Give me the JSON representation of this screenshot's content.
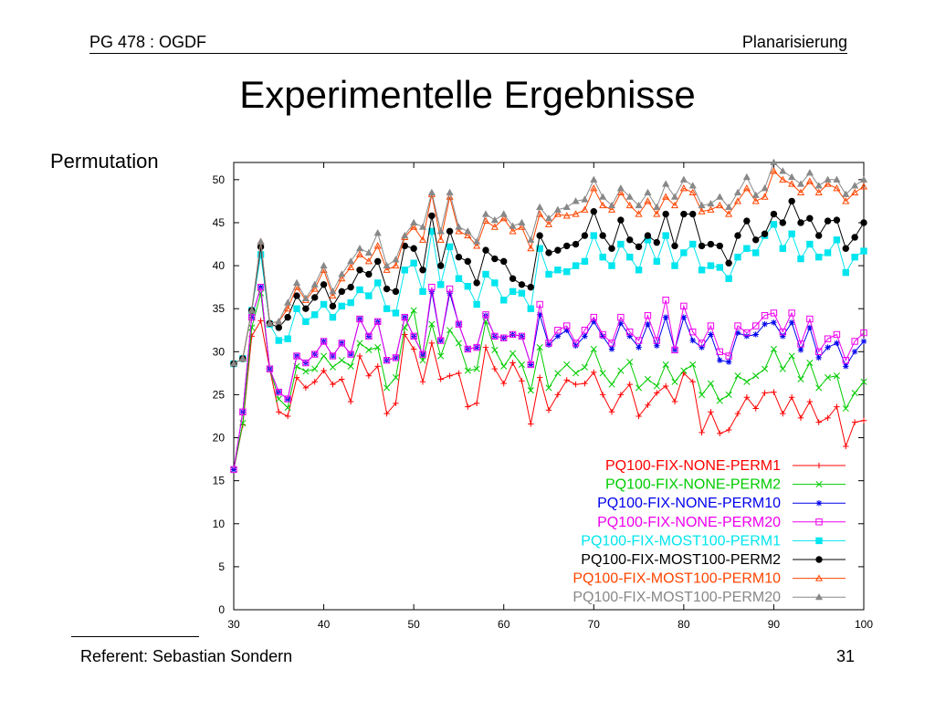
{
  "header": {
    "left": "PG  478 : OGDF",
    "right": "Planarisierung"
  },
  "slide": {
    "title": "Experimentelle Ergebnisse",
    "subtitle": "Permutation"
  },
  "footer": {
    "left": "Referent: Sebastian Sondern",
    "page": "31"
  },
  "chart_data": {
    "type": "line",
    "title": "",
    "xlabel": "",
    "ylabel": "",
    "xlim": [
      30,
      100
    ],
    "ylim": [
      0,
      52
    ],
    "xticks": [
      30,
      40,
      50,
      60,
      70,
      80,
      90,
      100
    ],
    "yticks": [
      0,
      5,
      10,
      15,
      20,
      25,
      30,
      35,
      40,
      45,
      50
    ],
    "legend_position": "bottom-right",
    "grid": false,
    "x": [
      30,
      31,
      32,
      33,
      34,
      35,
      36,
      37,
      38,
      39,
      40,
      41,
      42,
      43,
      44,
      45,
      46,
      47,
      48,
      49,
      50,
      51,
      52,
      53,
      54,
      55,
      56,
      57,
      58,
      59,
      60,
      61,
      62,
      63,
      64,
      65,
      66,
      67,
      68,
      69,
      70,
      71,
      72,
      73,
      74,
      75,
      76,
      77,
      78,
      79,
      80,
      81,
      82,
      83,
      84,
      85,
      86,
      87,
      88,
      89,
      90,
      91,
      92,
      93,
      94,
      95,
      96,
      97,
      98,
      99,
      100
    ],
    "series": [
      {
        "name": "PQ100-FIX-NONE-PERM1",
        "color": "#ff0000",
        "marker": "plus",
        "values": [
          16.3,
          21.5,
          31.8,
          33.6,
          28.0,
          23.0,
          22.5,
          27.0,
          25.8,
          26.5,
          27.8,
          26.2,
          26.8,
          24.2,
          29.5,
          27.2,
          28.3,
          22.8,
          24.0,
          32.0,
          30.3,
          26.5,
          31.0,
          26.8,
          27.2,
          27.5,
          23.6,
          24.0,
          30.5,
          28.0,
          26.3,
          28.7,
          26.6,
          21.6,
          27.0,
          23.2,
          25.0,
          26.7,
          26.2,
          26.3,
          27.6,
          25.0,
          23.0,
          25.0,
          26.2,
          22.5,
          23.8,
          25.2,
          26.0,
          24.2,
          27.5,
          26.5,
          20.6,
          23.0,
          20.5,
          20.9,
          22.8,
          24.7,
          23.4,
          25.2,
          25.3,
          22.8,
          24.7,
          22.3,
          24.2,
          21.8,
          22.3,
          23.6,
          19.0,
          21.8,
          22.0
        ]
      },
      {
        "name": "PQ100-FIX-NONE-PERM2",
        "color": "#00cc00",
        "marker": "x",
        "values": [
          16.3,
          21.7,
          32.8,
          36.8,
          28.0,
          24.5,
          23.5,
          28.3,
          27.7,
          28.0,
          29.5,
          28.2,
          29.0,
          28.3,
          31.0,
          30.2,
          30.5,
          25.8,
          27.0,
          32.8,
          34.8,
          29.0,
          33.2,
          29.5,
          32.5,
          31.0,
          27.8,
          28.0,
          33.5,
          30.2,
          28.3,
          29.8,
          28.5,
          25.5,
          30.5,
          25.8,
          27.5,
          28.5,
          27.5,
          28.2,
          30.3,
          27.5,
          26.2,
          27.8,
          28.8,
          25.8,
          26.8,
          26.0,
          28.5,
          26.5,
          27.8,
          28.5,
          25.0,
          26.3,
          24.3,
          25.0,
          27.2,
          26.5,
          27.2,
          28.0,
          30.3,
          28.0,
          29.5,
          26.8,
          28.7,
          25.8,
          27.0,
          27.2,
          23.4,
          25.2,
          26.5
        ]
      },
      {
        "name": "PQ100-FIX-NONE-PERM10",
        "color": "#0000ee",
        "marker": "star",
        "values": [
          16.3,
          23.0,
          34.0,
          37.5,
          28.0,
          25.3,
          24.5,
          29.5,
          28.7,
          29.7,
          31.2,
          29.5,
          31.0,
          29.7,
          33.8,
          31.8,
          33.5,
          29.0,
          29.3,
          34.0,
          31.8,
          29.7,
          37.0,
          31.3,
          36.8,
          33.2,
          30.3,
          30.5,
          34.2,
          31.8,
          31.6,
          32.0,
          31.8,
          28.5,
          34.3,
          30.8,
          31.8,
          32.5,
          30.7,
          31.8,
          33.5,
          31.8,
          30.3,
          33.3,
          31.8,
          30.5,
          33.2,
          30.7,
          34.0,
          30.2,
          34.0,
          31.3,
          30.5,
          32.0,
          29.0,
          28.8,
          32.2,
          31.8,
          32.0,
          33.2,
          33.4,
          31.8,
          33.4,
          30.2,
          32.8,
          29.3,
          30.5,
          31.0,
          28.3,
          30.0,
          31.2
        ]
      },
      {
        "name": "PQ100-FIX-NONE-PERM20",
        "color": "#ee00ee",
        "marker": "square",
        "values": [
          16.3,
          23.0,
          34.0,
          37.5,
          28.0,
          25.3,
          24.5,
          29.5,
          28.7,
          29.7,
          31.2,
          29.5,
          31.0,
          29.7,
          33.8,
          31.8,
          33.5,
          29.0,
          29.3,
          34.0,
          31.8,
          29.7,
          37.5,
          31.3,
          37.3,
          33.2,
          30.3,
          30.5,
          34.3,
          31.8,
          31.6,
          32.0,
          31.8,
          28.5,
          35.5,
          31.0,
          32.5,
          33.0,
          31.0,
          32.5,
          34.0,
          32.0,
          31.0,
          34.0,
          32.3,
          31.3,
          34.2,
          31.3,
          36.0,
          30.2,
          35.3,
          32.3,
          31.0,
          33.0,
          30.0,
          29.5,
          33.0,
          32.2,
          33.0,
          34.2,
          34.5,
          32.3,
          34.5,
          30.9,
          33.8,
          30.0,
          31.5,
          32.0,
          29.0,
          31.2,
          32.2
        ]
      },
      {
        "name": "PQ100-FIX-MOST100-PERM1",
        "color": "#00e5ee",
        "marker": "filled-square",
        "values": [
          28.6,
          29.2,
          34.8,
          41.3,
          33.2,
          31.3,
          31.5,
          35.0,
          33.5,
          34.3,
          35.5,
          34.0,
          35.3,
          35.7,
          37.2,
          36.5,
          38.0,
          35.0,
          34.5,
          39.5,
          40.3,
          37.0,
          44.0,
          37.8,
          42.2,
          38.5,
          37.6,
          35.5,
          39.0,
          38.0,
          36.0,
          37.0,
          36.8,
          35.0,
          42.0,
          39.0,
          39.5,
          39.3,
          40.0,
          40.5,
          43.5,
          41.0,
          40.0,
          42.5,
          41.0,
          39.5,
          43.0,
          40.5,
          43.5,
          40.0,
          41.5,
          42.5,
          39.5,
          40.0,
          39.8,
          38.5,
          41.0,
          42.0,
          41.5,
          43.5,
          44.8,
          42.0,
          43.7,
          40.8,
          42.5,
          41.0,
          41.5,
          43.0,
          39.2,
          41.0,
          41.7
        ]
      },
      {
        "name": "PQ100-FIX-MOST100-PERM2",
        "color": "#000000",
        "marker": "filled-circle",
        "values": [
          28.6,
          29.2,
          34.8,
          42.2,
          33.3,
          32.8,
          34.0,
          36.5,
          35.0,
          36.3,
          37.8,
          35.3,
          37.0,
          37.5,
          39.5,
          39.0,
          40.5,
          37.3,
          37.0,
          42.3,
          42.0,
          39.5,
          45.8,
          40.0,
          44.0,
          41.0,
          40.5,
          38.0,
          41.8,
          40.8,
          40.5,
          38.5,
          37.8,
          37.5,
          43.5,
          41.5,
          41.8,
          42.3,
          42.5,
          43.5,
          46.3,
          43.5,
          42.0,
          45.3,
          43.0,
          42.2,
          43.5,
          42.7,
          46.0,
          42.3,
          46.0,
          46.0,
          42.3,
          42.5,
          42.3,
          40.3,
          43.5,
          45.2,
          43.0,
          43.7,
          46.0,
          45.0,
          47.5,
          45.0,
          45.5,
          43.5,
          45.2,
          45.3,
          42.0,
          43.3,
          45.0
        ]
      },
      {
        "name": "PQ100-FIX-MOST100-PERM10",
        "color": "#ff4500",
        "marker": "triangle",
        "values": [
          28.6,
          29.2,
          34.8,
          42.8,
          33.3,
          33.5,
          35.0,
          37.5,
          36.0,
          37.3,
          39.5,
          36.5,
          38.5,
          39.8,
          41.3,
          40.5,
          42.3,
          39.5,
          40.0,
          43.3,
          44.5,
          43.0,
          48.3,
          43.0,
          48.0,
          44.0,
          43.5,
          42.3,
          45.2,
          44.5,
          45.5,
          44.0,
          44.5,
          42.0,
          46.0,
          44.8,
          46.0,
          45.8,
          46.0,
          46.5,
          49.0,
          47.0,
          46.5,
          48.5,
          47.0,
          46.0,
          47.5,
          46.0,
          48.0,
          47.0,
          49.0,
          48.5,
          46.3,
          46.5,
          47.0,
          46.0,
          47.5,
          49.0,
          47.5,
          48.0,
          51.0,
          50.0,
          49.5,
          48.5,
          49.8,
          48.5,
          49.5,
          49.0,
          47.5,
          48.5,
          49.2
        ]
      },
      {
        "name": "PQ100-FIX-MOST100-PERM20",
        "color": "#888888",
        "marker": "filled-triangle",
        "values": [
          28.6,
          29.2,
          34.8,
          42.8,
          33.3,
          33.5,
          35.7,
          38.0,
          36.2,
          37.8,
          40.0,
          37.0,
          39.0,
          40.5,
          42.0,
          41.5,
          43.8,
          40.0,
          40.7,
          43.5,
          45.0,
          44.5,
          48.5,
          44.0,
          48.5,
          44.5,
          44.0,
          42.8,
          46.0,
          45.3,
          46.0,
          44.6,
          45.0,
          43.0,
          46.8,
          45.5,
          46.5,
          46.8,
          47.5,
          47.7,
          50.0,
          48.0,
          47.0,
          49.0,
          48.0,
          47.0,
          48.5,
          46.8,
          49.5,
          48.0,
          50.0,
          49.3,
          47.0,
          47.2,
          48.0,
          46.8,
          48.5,
          50.3,
          48.2,
          49.0,
          52.0,
          51.0,
          50.3,
          49.5,
          50.8,
          49.3,
          50.0,
          50.0,
          48.3,
          49.3,
          50.0
        ]
      }
    ]
  }
}
